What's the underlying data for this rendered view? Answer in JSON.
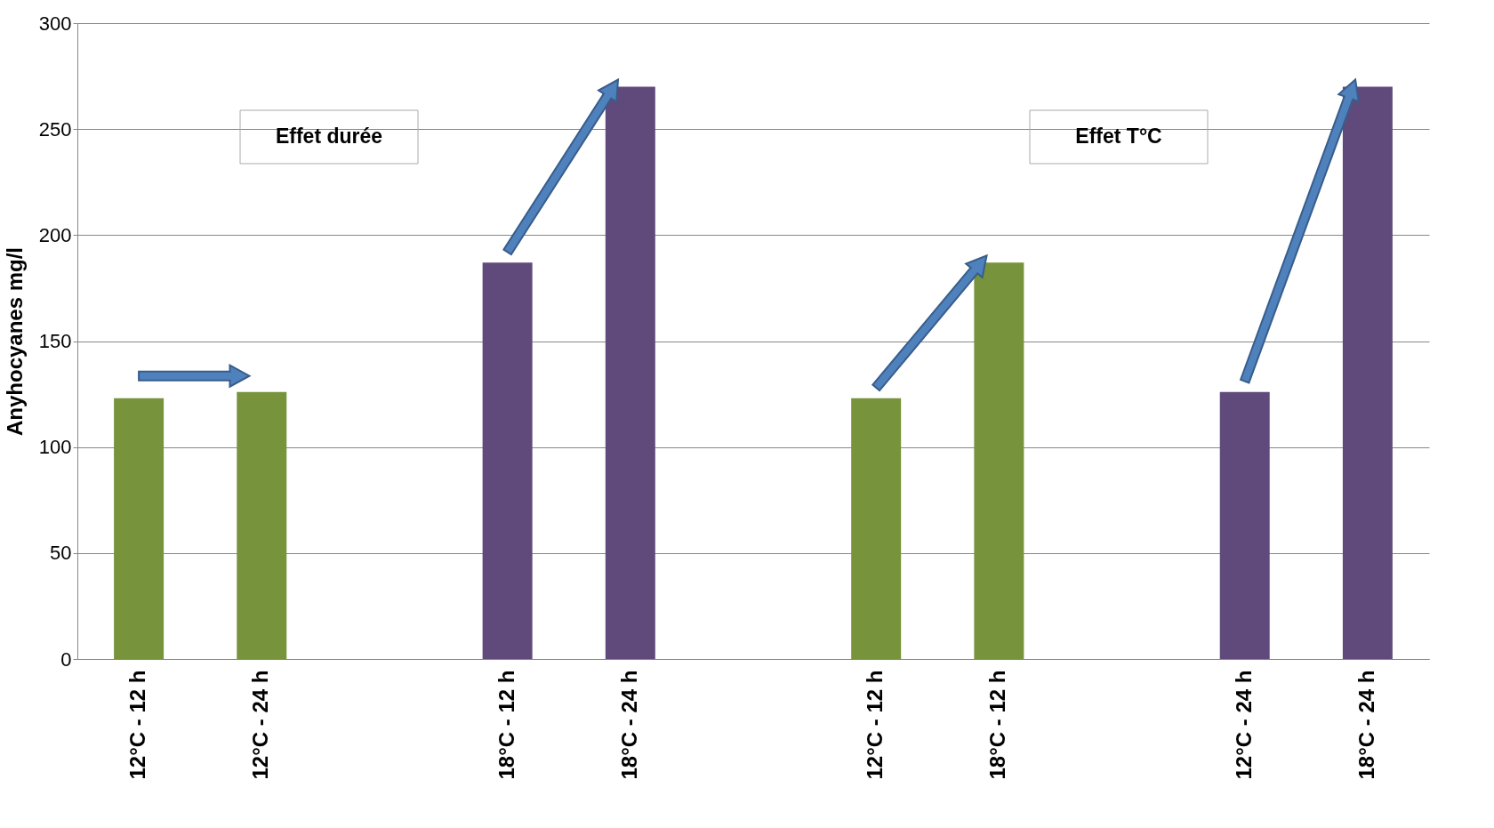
{
  "chart_data": {
    "type": "bar",
    "ylabel": "Anyhocyanes mg/l",
    "categories": [
      "12°C - 12 h",
      "12°C - 24 h",
      null,
      "18°C - 12 h",
      "18°C - 24 h",
      null,
      "12°C - 12 h",
      "18°C - 12 h",
      null,
      "12°C - 24 h",
      "18°C - 24 h"
    ],
    "values": [
      123,
      126,
      null,
      187,
      270,
      null,
      123,
      187,
      null,
      126,
      270
    ],
    "colors": [
      "#77933c",
      "#77933c",
      "#77933c",
      "#604a7b",
      "#604a7b",
      "#604a7b",
      "#77933c",
      "#77933c",
      "#77933c",
      "#604a7b",
      "#604a7b"
    ],
    "ylim": [
      0,
      300
    ],
    "yticks": [
      0,
      50,
      100,
      150,
      200,
      250,
      300
    ],
    "grid": "y",
    "annotations": [
      "Effet durée",
      "Effet T°C"
    ]
  }
}
